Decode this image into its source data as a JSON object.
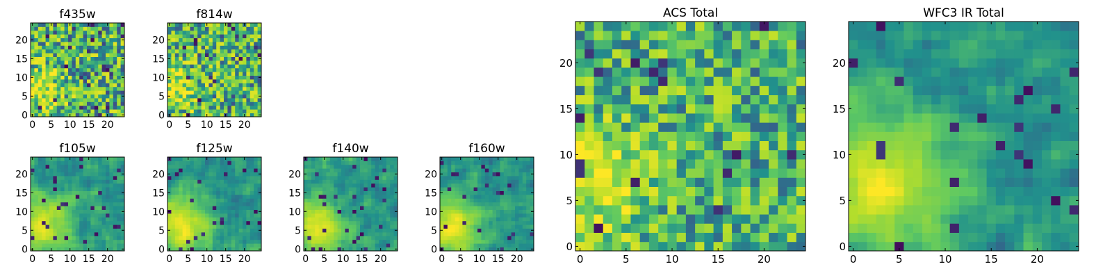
{
  "figure": {
    "colormap": "viridis",
    "colormap_stops": [
      "#440154",
      "#3b528b",
      "#21918c",
      "#5ec962",
      "#b5de2b",
      "#fde725"
    ]
  },
  "chart_data": [
    {
      "type": "heatmap",
      "title": "f435w",
      "xlabel": "",
      "ylabel": "",
      "grid_size": [
        25,
        25
      ],
      "xlim": [
        -0.5,
        24.5
      ],
      "ylim": [
        -0.5,
        24.5
      ],
      "x_ticks": [
        0,
        5,
        10,
        15,
        20
      ],
      "y_ticks": [
        0,
        5,
        10,
        15,
        20
      ],
      "grid": false,
      "smoothness": "very noisy",
      "bright_blob": {
        "center": [
          2,
          7
        ],
        "radius": 4
      }
    },
    {
      "type": "heatmap",
      "title": "f814w",
      "xlabel": "",
      "ylabel": "",
      "grid_size": [
        25,
        25
      ],
      "xlim": [
        -0.5,
        24.5
      ],
      "ylim": [
        -0.5,
        24.5
      ],
      "x_ticks": [
        0,
        5,
        10,
        15,
        20
      ],
      "y_ticks": [
        0,
        5,
        10,
        15,
        20
      ],
      "grid": false,
      "smoothness": "very noisy",
      "bright_blob": {
        "center": [
          2,
          7
        ],
        "radius": 4
      }
    },
    {
      "type": "heatmap",
      "title": "f105w",
      "xlabel": "",
      "ylabel": "",
      "grid_size": [
        25,
        25
      ],
      "xlim": [
        -0.5,
        24.5
      ],
      "ylim": [
        -0.5,
        24.5
      ],
      "x_ticks": [
        0,
        5,
        10,
        15,
        20
      ],
      "y_ticks": [
        0,
        5,
        10,
        15,
        20
      ],
      "grid": false,
      "smoothness": "smooth",
      "bright_blob": {
        "center": [
          3,
          6
        ],
        "radius": 5
      }
    },
    {
      "type": "heatmap",
      "title": "f125w",
      "xlabel": "",
      "ylabel": "",
      "grid_size": [
        25,
        25
      ],
      "xlim": [
        -0.5,
        24.5
      ],
      "ylim": [
        -0.5,
        24.5
      ],
      "x_ticks": [
        0,
        5,
        10,
        15,
        20
      ],
      "y_ticks": [
        0,
        5,
        10,
        15,
        20
      ],
      "grid": false,
      "smoothness": "smooth",
      "bright_blob": {
        "center": [
          3,
          6
        ],
        "radius": 5
      }
    },
    {
      "type": "heatmap",
      "title": "f140w",
      "xlabel": "",
      "ylabel": "",
      "grid_size": [
        25,
        25
      ],
      "xlim": [
        -0.5,
        24.5
      ],
      "ylim": [
        -0.5,
        24.5
      ],
      "x_ticks": [
        0,
        5,
        10,
        15,
        20
      ],
      "y_ticks": [
        0,
        5,
        10,
        15,
        20
      ],
      "grid": false,
      "smoothness": "smooth",
      "bright_blob": {
        "center": [
          3,
          6
        ],
        "radius": 5
      }
    },
    {
      "type": "heatmap",
      "title": "f160w",
      "xlabel": "",
      "ylabel": "",
      "grid_size": [
        25,
        25
      ],
      "xlim": [
        -0.5,
        24.5
      ],
      "ylim": [
        -0.5,
        24.5
      ],
      "x_ticks": [
        0,
        5,
        10,
        15,
        20
      ],
      "y_ticks": [
        0,
        5,
        10,
        15,
        20
      ],
      "grid": false,
      "smoothness": "smooth",
      "bright_blob": {
        "center": [
          3,
          6
        ],
        "radius": 5
      }
    },
    {
      "type": "heatmap",
      "title": "ACS Total",
      "xlabel": "",
      "ylabel": "",
      "grid_size": [
        25,
        25
      ],
      "xlim": [
        -0.5,
        24.5
      ],
      "ylim": [
        -0.5,
        24.5
      ],
      "x_ticks": [
        0,
        5,
        10,
        15,
        20
      ],
      "y_ticks": [
        0,
        5,
        10,
        15,
        20
      ],
      "grid": false,
      "smoothness": "noisy",
      "bright_blob": {
        "center": [
          2,
          7
        ],
        "radius": 4
      }
    },
    {
      "type": "heatmap",
      "title": "WFC3 IR Total",
      "xlabel": "",
      "ylabel": "",
      "grid_size": [
        25,
        25
      ],
      "xlim": [
        -0.5,
        24.5
      ],
      "ylim": [
        -0.5,
        24.5
      ],
      "x_ticks": [
        0,
        5,
        10,
        15,
        20
      ],
      "y_ticks": [
        0,
        5,
        10,
        15,
        20
      ],
      "grid": false,
      "smoothness": "smooth",
      "bright_blob": {
        "center": [
          3,
          7
        ],
        "radius": 5
      }
    }
  ]
}
